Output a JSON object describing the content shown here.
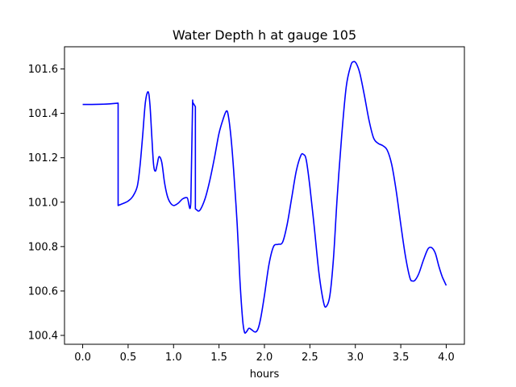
{
  "chart_data": {
    "type": "line",
    "title": "Water Depth h at gauge 105",
    "xlabel": "hours",
    "ylabel": "",
    "xlim": [
      -0.2,
      4.2
    ],
    "ylim": [
      100.36,
      101.7
    ],
    "xticks": [
      0.0,
      0.5,
      1.0,
      1.5,
      2.0,
      2.5,
      3.0,
      3.5,
      4.0
    ],
    "xtick_labels": [
      "0.0",
      "0.5",
      "1.0",
      "1.5",
      "2.0",
      "2.5",
      "3.0",
      "3.5",
      "4.0"
    ],
    "yticks": [
      100.4,
      100.6,
      100.8,
      101.0,
      101.2,
      101.4,
      101.6
    ],
    "ytick_labels": [
      "100.4",
      "100.6",
      "100.8",
      "101.0",
      "101.2",
      "101.4",
      "101.6"
    ],
    "grid": false,
    "series": [
      {
        "color": "#0000ff",
        "x": [
          0.0,
          0.1,
          0.2,
          0.3,
          0.39,
          0.39,
          0.45,
          0.5,
          0.55,
          0.6,
          0.63,
          0.66,
          0.69,
          0.72,
          0.74,
          0.76,
          0.78,
          0.8,
          0.82,
          0.84,
          0.87,
          0.9,
          0.93,
          0.96,
          1.0,
          1.05,
          1.1,
          1.15,
          1.19,
          1.21,
          1.21,
          1.24,
          1.24,
          1.27,
          1.3,
          1.35,
          1.4,
          1.45,
          1.5,
          1.55,
          1.58,
          1.6,
          1.63,
          1.66,
          1.7,
          1.73,
          1.76,
          1.78,
          1.8,
          1.83,
          1.86,
          1.9,
          1.93,
          1.96,
          2.0,
          2.05,
          2.1,
          2.15,
          2.2,
          2.25,
          2.3,
          2.35,
          2.4,
          2.43,
          2.46,
          2.5,
          2.55,
          2.6,
          2.65,
          2.68,
          2.72,
          2.76,
          2.8,
          2.85,
          2.9,
          2.95,
          2.98,
          3.01,
          3.05,
          3.1,
          3.15,
          3.2,
          3.25,
          3.3,
          3.35,
          3.4,
          3.45,
          3.5,
          3.55,
          3.6,
          3.63,
          3.66,
          3.7,
          3.75,
          3.8,
          3.84,
          3.88,
          3.92,
          3.96,
          4.0
        ],
        "y": [
          101.44,
          101.44,
          101.441,
          101.443,
          101.446,
          100.985,
          100.995,
          101.005,
          101.025,
          101.07,
          101.16,
          101.3,
          101.45,
          101.497,
          101.44,
          101.3,
          101.17,
          101.14,
          101.17,
          101.205,
          101.18,
          101.09,
          101.03,
          101.0,
          100.985,
          100.995,
          101.015,
          101.02,
          101.0,
          101.46,
          101.45,
          101.43,
          100.97,
          100.96,
          100.97,
          101.02,
          101.1,
          101.2,
          101.31,
          101.38,
          101.41,
          101.395,
          101.3,
          101.15,
          100.9,
          100.65,
          100.47,
          100.415,
          100.415,
          100.432,
          100.425,
          100.415,
          100.43,
          100.48,
          100.58,
          100.72,
          100.8,
          100.81,
          100.82,
          100.9,
          101.02,
          101.14,
          101.21,
          101.215,
          101.19,
          101.07,
          100.88,
          100.68,
          100.55,
          100.53,
          100.58,
          100.75,
          101.02,
          101.3,
          101.52,
          101.615,
          101.633,
          101.625,
          101.58,
          101.48,
          101.37,
          101.29,
          101.265,
          101.255,
          101.235,
          101.17,
          101.05,
          100.9,
          100.76,
          100.66,
          100.645,
          100.65,
          100.68,
          100.74,
          100.79,
          100.795,
          100.77,
          100.71,
          100.66,
          100.625
        ]
      }
    ]
  }
}
